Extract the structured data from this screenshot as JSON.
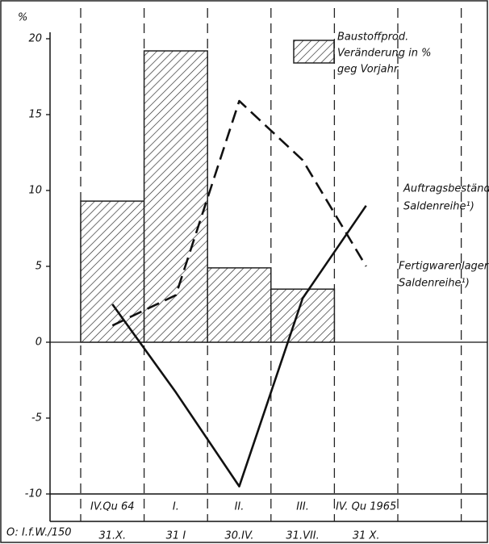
{
  "chart_data": {
    "type": "bar_line",
    "y_unit": "%",
    "source": "O: I.f.W./150",
    "categories": [
      "IV.Qu 64",
      "I.",
      "II.",
      "III.",
      "IV. Qu 1965"
    ],
    "dates": [
      "31.X.",
      "31 I",
      "30.IV.",
      "31.VII.",
      "31 X."
    ],
    "ylim": [
      -10,
      20
    ],
    "yticks": [
      20,
      15,
      10,
      5,
      0,
      -5,
      -10
    ],
    "series": [
      {
        "type": "bar",
        "name_lines": [
          "Baustoffprod.",
          "Veränderung in %",
          "geg Vorjahr"
        ],
        "color": "#222222",
        "values": [
          9.3,
          19.2,
          4.9,
          3.5,
          null
        ]
      },
      {
        "type": "line",
        "style": "solid",
        "name_lines": [
          "Auftragsbestände",
          "Saldenreihe¹)"
        ],
        "color": "#111111",
        "values": [
          2.5,
          -3.3,
          -9.5,
          2.9,
          9.0
        ]
      },
      {
        "type": "line",
        "style": "dashed",
        "name_lines": [
          "Fertigwarenlager",
          "Saldenreihe¹)"
        ],
        "color": "#111111",
        "values": [
          1.1,
          3.1,
          15.9,
          12.0,
          5.0
        ]
      }
    ]
  }
}
